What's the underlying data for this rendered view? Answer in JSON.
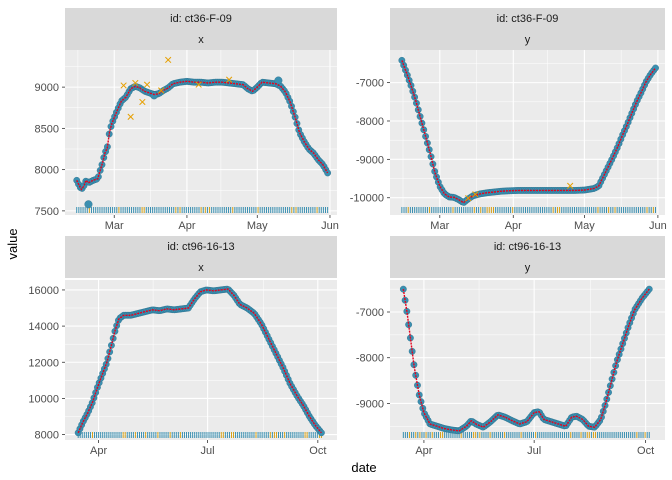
{
  "figure": {
    "xlabel": "date",
    "ylabel": "value"
  },
  "colors": {
    "panel_bg": "#ebebeb",
    "grid": "#ffffff",
    "strip_bg": "#d9d9d9",
    "point_fill": "#3a8fb0",
    "point_dark": "#2a6f8c",
    "fit_line": "#e8001c",
    "outlier": "#e69f00",
    "rug_teal": "#3a8fb0",
    "rug_gold": "#d4a017"
  },
  "chart_data": [
    {
      "type": "scatter",
      "strip_id": "id: ct36-F-09",
      "strip_var": "x",
      "x_ticks": [
        "Mar",
        "Apr",
        "May",
        "Jun"
      ],
      "y_ticks": [
        "7500",
        "8000",
        "8500",
        "9000"
      ],
      "ylim": [
        7450,
        9450
      ],
      "xlim": [
        "2036-02-09",
        "2036-06-04"
      ],
      "points": [
        [
          "2036-02-14",
          7870
        ],
        [
          "2036-02-15",
          7810
        ],
        [
          "2036-02-16",
          7760
        ],
        [
          "2036-02-17",
          7800
        ],
        [
          "2036-02-18",
          7870
        ],
        [
          "2036-02-19",
          7840
        ],
        [
          "2036-02-21",
          7870
        ],
        [
          "2036-02-23",
          7890
        ],
        [
          "2036-02-24",
          7990
        ],
        [
          "2036-02-25",
          8080
        ],
        [
          "2036-02-26",
          8200
        ],
        [
          "2036-02-27",
          8260
        ],
        [
          "2036-02-28",
          8460
        ],
        [
          "2036-02-29",
          8560
        ],
        [
          "2036-03-02",
          8700
        ],
        [
          "2036-03-04",
          8830
        ],
        [
          "2036-03-06",
          8880
        ],
        [
          "2036-03-08",
          8980
        ],
        [
          "2036-03-10",
          9010
        ],
        [
          "2036-03-12",
          8990
        ],
        [
          "2036-03-14",
          8950
        ],
        [
          "2036-03-16",
          8930
        ],
        [
          "2036-03-18",
          8910
        ],
        [
          "2036-03-20",
          8920
        ],
        [
          "2036-03-22",
          8960
        ],
        [
          "2036-03-24",
          8990
        ],
        [
          "2036-03-26",
          9040
        ],
        [
          "2036-03-29",
          9060
        ],
        [
          "2036-04-01",
          9070
        ],
        [
          "2036-04-04",
          9060
        ],
        [
          "2036-04-07",
          9060
        ],
        [
          "2036-04-10",
          9050
        ],
        [
          "2036-04-13",
          9060
        ],
        [
          "2036-04-16",
          9060
        ],
        [
          "2036-04-19",
          9050
        ],
        [
          "2036-04-22",
          9040
        ],
        [
          "2036-04-25",
          9030
        ],
        [
          "2036-04-27",
          8980
        ],
        [
          "2036-04-29",
          8950
        ],
        [
          "2036-05-01",
          9000
        ],
        [
          "2036-05-03",
          9060
        ],
        [
          "2036-05-06",
          9050
        ],
        [
          "2036-05-09",
          9040
        ],
        [
          "2036-05-11",
          9010
        ],
        [
          "2036-05-13",
          8940
        ],
        [
          "2036-05-15",
          8820
        ],
        [
          "2036-05-17",
          8650
        ],
        [
          "2036-05-19",
          8450
        ],
        [
          "2036-05-21",
          8340
        ],
        [
          "2036-05-23",
          8250
        ],
        [
          "2036-05-25",
          8200
        ],
        [
          "2036-05-27",
          8120
        ],
        [
          "2036-05-29",
          8060
        ],
        [
          "2036-05-31",
          7960
        ]
      ],
      "big_points": [
        [
          "2036-02-19",
          7580
        ],
        [
          "2036-05-10",
          9080
        ],
        [
          "2036-03-18",
          8900
        ]
      ],
      "outliers": [
        [
          "2036-03-05",
          9020
        ],
        [
          "2036-03-08",
          8640
        ],
        [
          "2036-03-10",
          9050
        ],
        [
          "2036-03-13",
          8820
        ],
        [
          "2036-03-15",
          9030
        ],
        [
          "2036-03-21",
          8960
        ],
        [
          "2036-03-24",
          9330
        ],
        [
          "2036-04-06",
          9030
        ],
        [
          "2036-04-19",
          9090
        ]
      ]
    },
    {
      "type": "scatter",
      "strip_id": "id: ct36-F-09",
      "strip_var": "y",
      "x_ticks": [
        "Mar",
        "Apr",
        "May",
        "Jun"
      ],
      "y_ticks": [
        "-7000",
        "-8000",
        "-9000",
        "-10000"
      ],
      "ylim": [
        -10450,
        -6150
      ],
      "xlim": [
        "2036-02-09",
        "2036-06-04"
      ],
      "points": [
        [
          "2036-02-14",
          -6420
        ],
        [
          "2036-02-16",
          -6750
        ],
        [
          "2036-02-18",
          -7100
        ],
        [
          "2036-02-20",
          -7500
        ],
        [
          "2036-02-22",
          -7950
        ],
        [
          "2036-02-24",
          -8400
        ],
        [
          "2036-02-26",
          -8850
        ],
        [
          "2036-02-28",
          -9350
        ],
        [
          "2036-03-01",
          -9700
        ],
        [
          "2036-03-03",
          -9900
        ],
        [
          "2036-03-05",
          -9980
        ],
        [
          "2036-03-07",
          -9990
        ],
        [
          "2036-03-09",
          -10050
        ],
        [
          "2036-03-11",
          -10130
        ],
        [
          "2036-03-13",
          -10030
        ],
        [
          "2036-03-15",
          -9950
        ],
        [
          "2036-03-18",
          -9900
        ],
        [
          "2036-03-21",
          -9870
        ],
        [
          "2036-03-24",
          -9850
        ],
        [
          "2036-03-27",
          -9830
        ],
        [
          "2036-03-30",
          -9820
        ],
        [
          "2036-04-03",
          -9810
        ],
        [
          "2036-04-07",
          -9810
        ],
        [
          "2036-04-11",
          -9810
        ],
        [
          "2036-04-15",
          -9810
        ],
        [
          "2036-04-19",
          -9810
        ],
        [
          "2036-04-23",
          -9810
        ],
        [
          "2036-04-27",
          -9810
        ],
        [
          "2036-05-01",
          -9800
        ],
        [
          "2036-05-03",
          -9780
        ],
        [
          "2036-05-05",
          -9760
        ],
        [
          "2036-05-07",
          -9700
        ],
        [
          "2036-05-09",
          -9450
        ],
        [
          "2036-05-11",
          -9200
        ],
        [
          "2036-05-13",
          -8950
        ],
        [
          "2036-05-15",
          -8680
        ],
        [
          "2036-05-17",
          -8380
        ],
        [
          "2036-05-19",
          -8100
        ],
        [
          "2036-05-21",
          -7800
        ],
        [
          "2036-05-23",
          -7500
        ],
        [
          "2036-05-25",
          -7250
        ],
        [
          "2036-05-27",
          -6980
        ],
        [
          "2036-05-29",
          -6780
        ],
        [
          "2036-05-31",
          -6620
        ]
      ],
      "big_points": [],
      "outliers": [
        [
          "2036-03-13",
          -10010
        ],
        [
          "2036-03-16",
          -9910
        ],
        [
          "2036-04-25",
          -9690
        ]
      ]
    },
    {
      "type": "scatter",
      "strip_id": "id: ct96-16-13",
      "strip_var": "x",
      "x_ticks": [
        "Apr",
        "Jul",
        "Oct"
      ],
      "y_ticks": [
        "8000",
        "10000",
        "12000",
        "14000",
        "16000"
      ],
      "ylim": [
        7700,
        16550
      ],
      "xlim": [
        "2096-03-04",
        "2096-10-17"
      ],
      "points": [
        [
          "2096-03-15",
          8100
        ],
        [
          "2096-03-19",
          8700
        ],
        [
          "2096-03-23",
          9200
        ],
        [
          "2096-03-27",
          9800
        ],
        [
          "2096-03-31",
          10600
        ],
        [
          "2096-04-04",
          11300
        ],
        [
          "2096-04-08",
          12000
        ],
        [
          "2096-04-12",
          13000
        ],
        [
          "2096-04-15",
          13800
        ],
        [
          "2096-04-18",
          14400
        ],
        [
          "2096-04-22",
          14600
        ],
        [
          "2096-04-28",
          14600
        ],
        [
          "2096-05-04",
          14700
        ],
        [
          "2096-05-10",
          14800
        ],
        [
          "2096-05-16",
          14900
        ],
        [
          "2096-05-22",
          14850
        ],
        [
          "2096-05-28",
          14950
        ],
        [
          "2096-06-03",
          14900
        ],
        [
          "2096-06-09",
          14950
        ],
        [
          "2096-06-15",
          15000
        ],
        [
          "2096-06-20",
          15500
        ],
        [
          "2096-06-25",
          15900
        ],
        [
          "2096-06-30",
          16000
        ],
        [
          "2096-07-06",
          15950
        ],
        [
          "2096-07-12",
          16000
        ],
        [
          "2096-07-18",
          16050
        ],
        [
          "2096-07-23",
          15700
        ],
        [
          "2096-07-28",
          15200
        ],
        [
          "2096-08-03",
          15000
        ],
        [
          "2096-08-09",
          14700
        ],
        [
          "2096-08-15",
          14100
        ],
        [
          "2096-08-21",
          13300
        ],
        [
          "2096-08-27",
          12500
        ],
        [
          "2096-09-02",
          11700
        ],
        [
          "2096-09-08",
          10800
        ],
        [
          "2096-09-14",
          10100
        ],
        [
          "2096-09-19",
          9600
        ],
        [
          "2096-09-24",
          9000
        ],
        [
          "2096-09-29",
          8500
        ],
        [
          "2096-10-04",
          8100
        ]
      ],
      "big_points": [],
      "outliers": []
    },
    {
      "type": "scatter",
      "strip_id": "id: ct96-16-13",
      "strip_var": "y",
      "x_ticks": [
        "Apr",
        "Jul",
        "Oct"
      ],
      "y_ticks": [
        "-7000",
        "-8000",
        "-9000"
      ],
      "ylim": [
        -9800,
        -6300
      ],
      "xlim": [
        "2096-03-04",
        "2096-10-17"
      ],
      "points": [
        [
          "2096-03-15",
          -6500
        ],
        [
          "2096-03-18",
          -7000
        ],
        [
          "2096-03-21",
          -7600
        ],
        [
          "2096-03-24",
          -8200
        ],
        [
          "2096-03-28",
          -8800
        ],
        [
          "2096-04-01",
          -9200
        ],
        [
          "2096-04-06",
          -9450
        ],
        [
          "2096-04-12",
          -9500
        ],
        [
          "2096-04-18",
          -9550
        ],
        [
          "2096-04-24",
          -9580
        ],
        [
          "2096-04-30",
          -9600
        ],
        [
          "2096-05-06",
          -9500
        ],
        [
          "2096-05-10",
          -9380
        ],
        [
          "2096-05-14",
          -9450
        ],
        [
          "2096-05-20",
          -9520
        ],
        [
          "2096-05-26",
          -9400
        ],
        [
          "2096-06-01",
          -9250
        ],
        [
          "2096-06-07",
          -9300
        ],
        [
          "2096-06-13",
          -9380
        ],
        [
          "2096-06-19",
          -9450
        ],
        [
          "2096-06-25",
          -9400
        ],
        [
          "2096-07-01",
          -9200
        ],
        [
          "2096-07-05",
          -9180
        ],
        [
          "2096-07-09",
          -9350
        ],
        [
          "2096-07-15",
          -9400
        ],
        [
          "2096-07-21",
          -9450
        ],
        [
          "2096-07-27",
          -9500
        ],
        [
          "2096-08-01",
          -9300
        ],
        [
          "2096-08-05",
          -9280
        ],
        [
          "2096-08-10",
          -9350
        ],
        [
          "2096-08-15",
          -9500
        ],
        [
          "2096-08-20",
          -9520
        ],
        [
          "2096-08-25",
          -9350
        ],
        [
          "2096-08-29",
          -9000
        ],
        [
          "2096-09-02",
          -8600
        ],
        [
          "2096-09-07",
          -8100
        ],
        [
          "2096-09-12",
          -7700
        ],
        [
          "2096-09-17",
          -7300
        ],
        [
          "2096-09-22",
          -6950
        ],
        [
          "2096-09-28",
          -6700
        ],
        [
          "2096-10-04",
          -6500
        ]
      ],
      "big_points": [],
      "outliers": []
    }
  ]
}
